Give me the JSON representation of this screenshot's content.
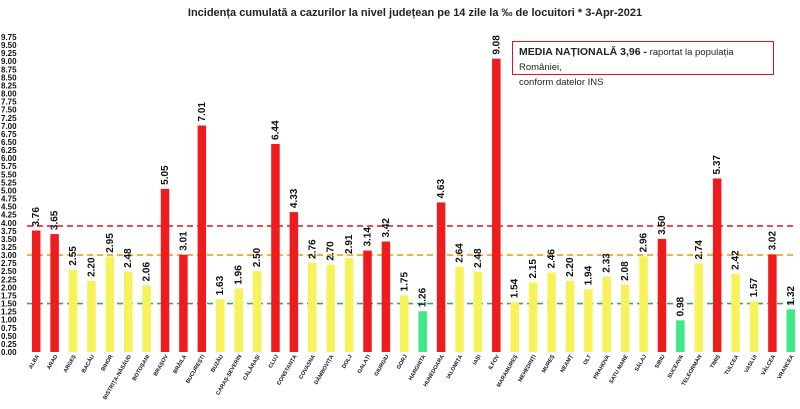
{
  "chart_data": {
    "type": "bar",
    "title": "Incidența cumulată a cazurilor la nivel județean pe 14 zile la ‰ de locuitori *   3-Apr-2021",
    "categories": [
      "ALBA",
      "ARAD",
      "ARGEȘ",
      "BACĂU",
      "BIHOR",
      "BISTRIȚA-NĂSĂUD",
      "BOTOȘANI",
      "BRAȘOV",
      "BRĂILA",
      "BUCUREȘTI",
      "BUZĂU",
      "CARAȘ-SEVERIN",
      "CĂLĂRAȘI",
      "CLUJ",
      "CONSTANȚA",
      "COVASNA",
      "DÂMBOVIȚA",
      "DOLJ",
      "GALAȚI",
      "GIURGIU",
      "GORJ",
      "HARGHITA",
      "HUNEDOARA",
      "IALOMIȚA",
      "IAȘI",
      "ILFOV",
      "MARAMUREȘ",
      "MEHEDINȚI",
      "MUREȘ",
      "NEAMȚ",
      "OLT",
      "PRAHOVA",
      "SATU MARE",
      "SĂLAJ",
      "SIBIU",
      "SUCEAVA",
      "TELEORMAN",
      "TIMIȘ",
      "TULCEA",
      "VASLUI",
      "VÂLCEA",
      "VRANCEA"
    ],
    "values": [
      3.76,
      3.65,
      2.55,
      2.2,
      2.95,
      2.48,
      2.06,
      5.05,
      3.01,
      7.01,
      1.63,
      1.96,
      2.5,
      6.44,
      4.33,
      2.76,
      2.7,
      2.91,
      3.14,
      3.42,
      1.75,
      1.26,
      4.63,
      2.64,
      2.48,
      9.08,
      1.54,
      2.15,
      2.46,
      2.2,
      1.94,
      2.33,
      2.08,
      2.96,
      3.5,
      0.98,
      2.74,
      5.37,
      2.42,
      1.57,
      3.02,
      1.32
    ],
    "value_labels": [
      "3.76",
      "3.65",
      "2.55",
      "2.20",
      "2.95",
      "2.48",
      "2.06",
      "5.05",
      "3.01",
      "7.01",
      "1.63",
      "1.96",
      "2.50",
      "6.44",
      "4.33",
      "2.76",
      "2.70",
      "2.91",
      "3.14",
      "3.42",
      "1.75",
      "1.26",
      "4.63",
      "2.64",
      "2.48",
      "9.08",
      "1.54",
      "2.15",
      "2.46",
      "2.20",
      "1.94",
      "2.33",
      "2.08",
      "2.96",
      "3.50",
      "0.98",
      "2.74",
      "5.37",
      "2.42",
      "1.57",
      "3.02",
      "1.32"
    ],
    "ylim": [
      0,
      9.75
    ],
    "ytick_step": 0.25,
    "ytick_labels": [
      "0.00",
      "0.25",
      "0.50",
      "0.75",
      "1.00",
      "1.25",
      "1.50",
      "1.75",
      "2.00",
      "2.25",
      "2.50",
      "2.75",
      "3.00",
      "3.25",
      "3.50",
      "3.75",
      "4.00",
      "4.25",
      "4.50",
      "4.75",
      "5.00",
      "5.25",
      "5.50",
      "5.75",
      "6.00",
      "6.25",
      "6.50",
      "6.75",
      "7.00",
      "7.25",
      "7.50",
      "7.75",
      "8.00",
      "8.25",
      "8.50",
      "8.75",
      "9.00",
      "9.25",
      "9.50",
      "9.75"
    ],
    "thresholds": [
      {
        "value": 3.9,
        "color": "#e3141b"
      },
      {
        "value": 3.0,
        "color": "#f0a500"
      },
      {
        "value": 1.5,
        "color": "#1db84a"
      }
    ],
    "colors": {
      "red": "#ee1c1c",
      "yellow": "#f7f15a",
      "green": "#3ee884"
    },
    "grid": false
  },
  "legend": {
    "line1_strong": "MEDIA NAȚIONALĂ  3,96 -",
    "line1_rest": " raportat la populația României,",
    "line2": "conform datelor INS"
  }
}
